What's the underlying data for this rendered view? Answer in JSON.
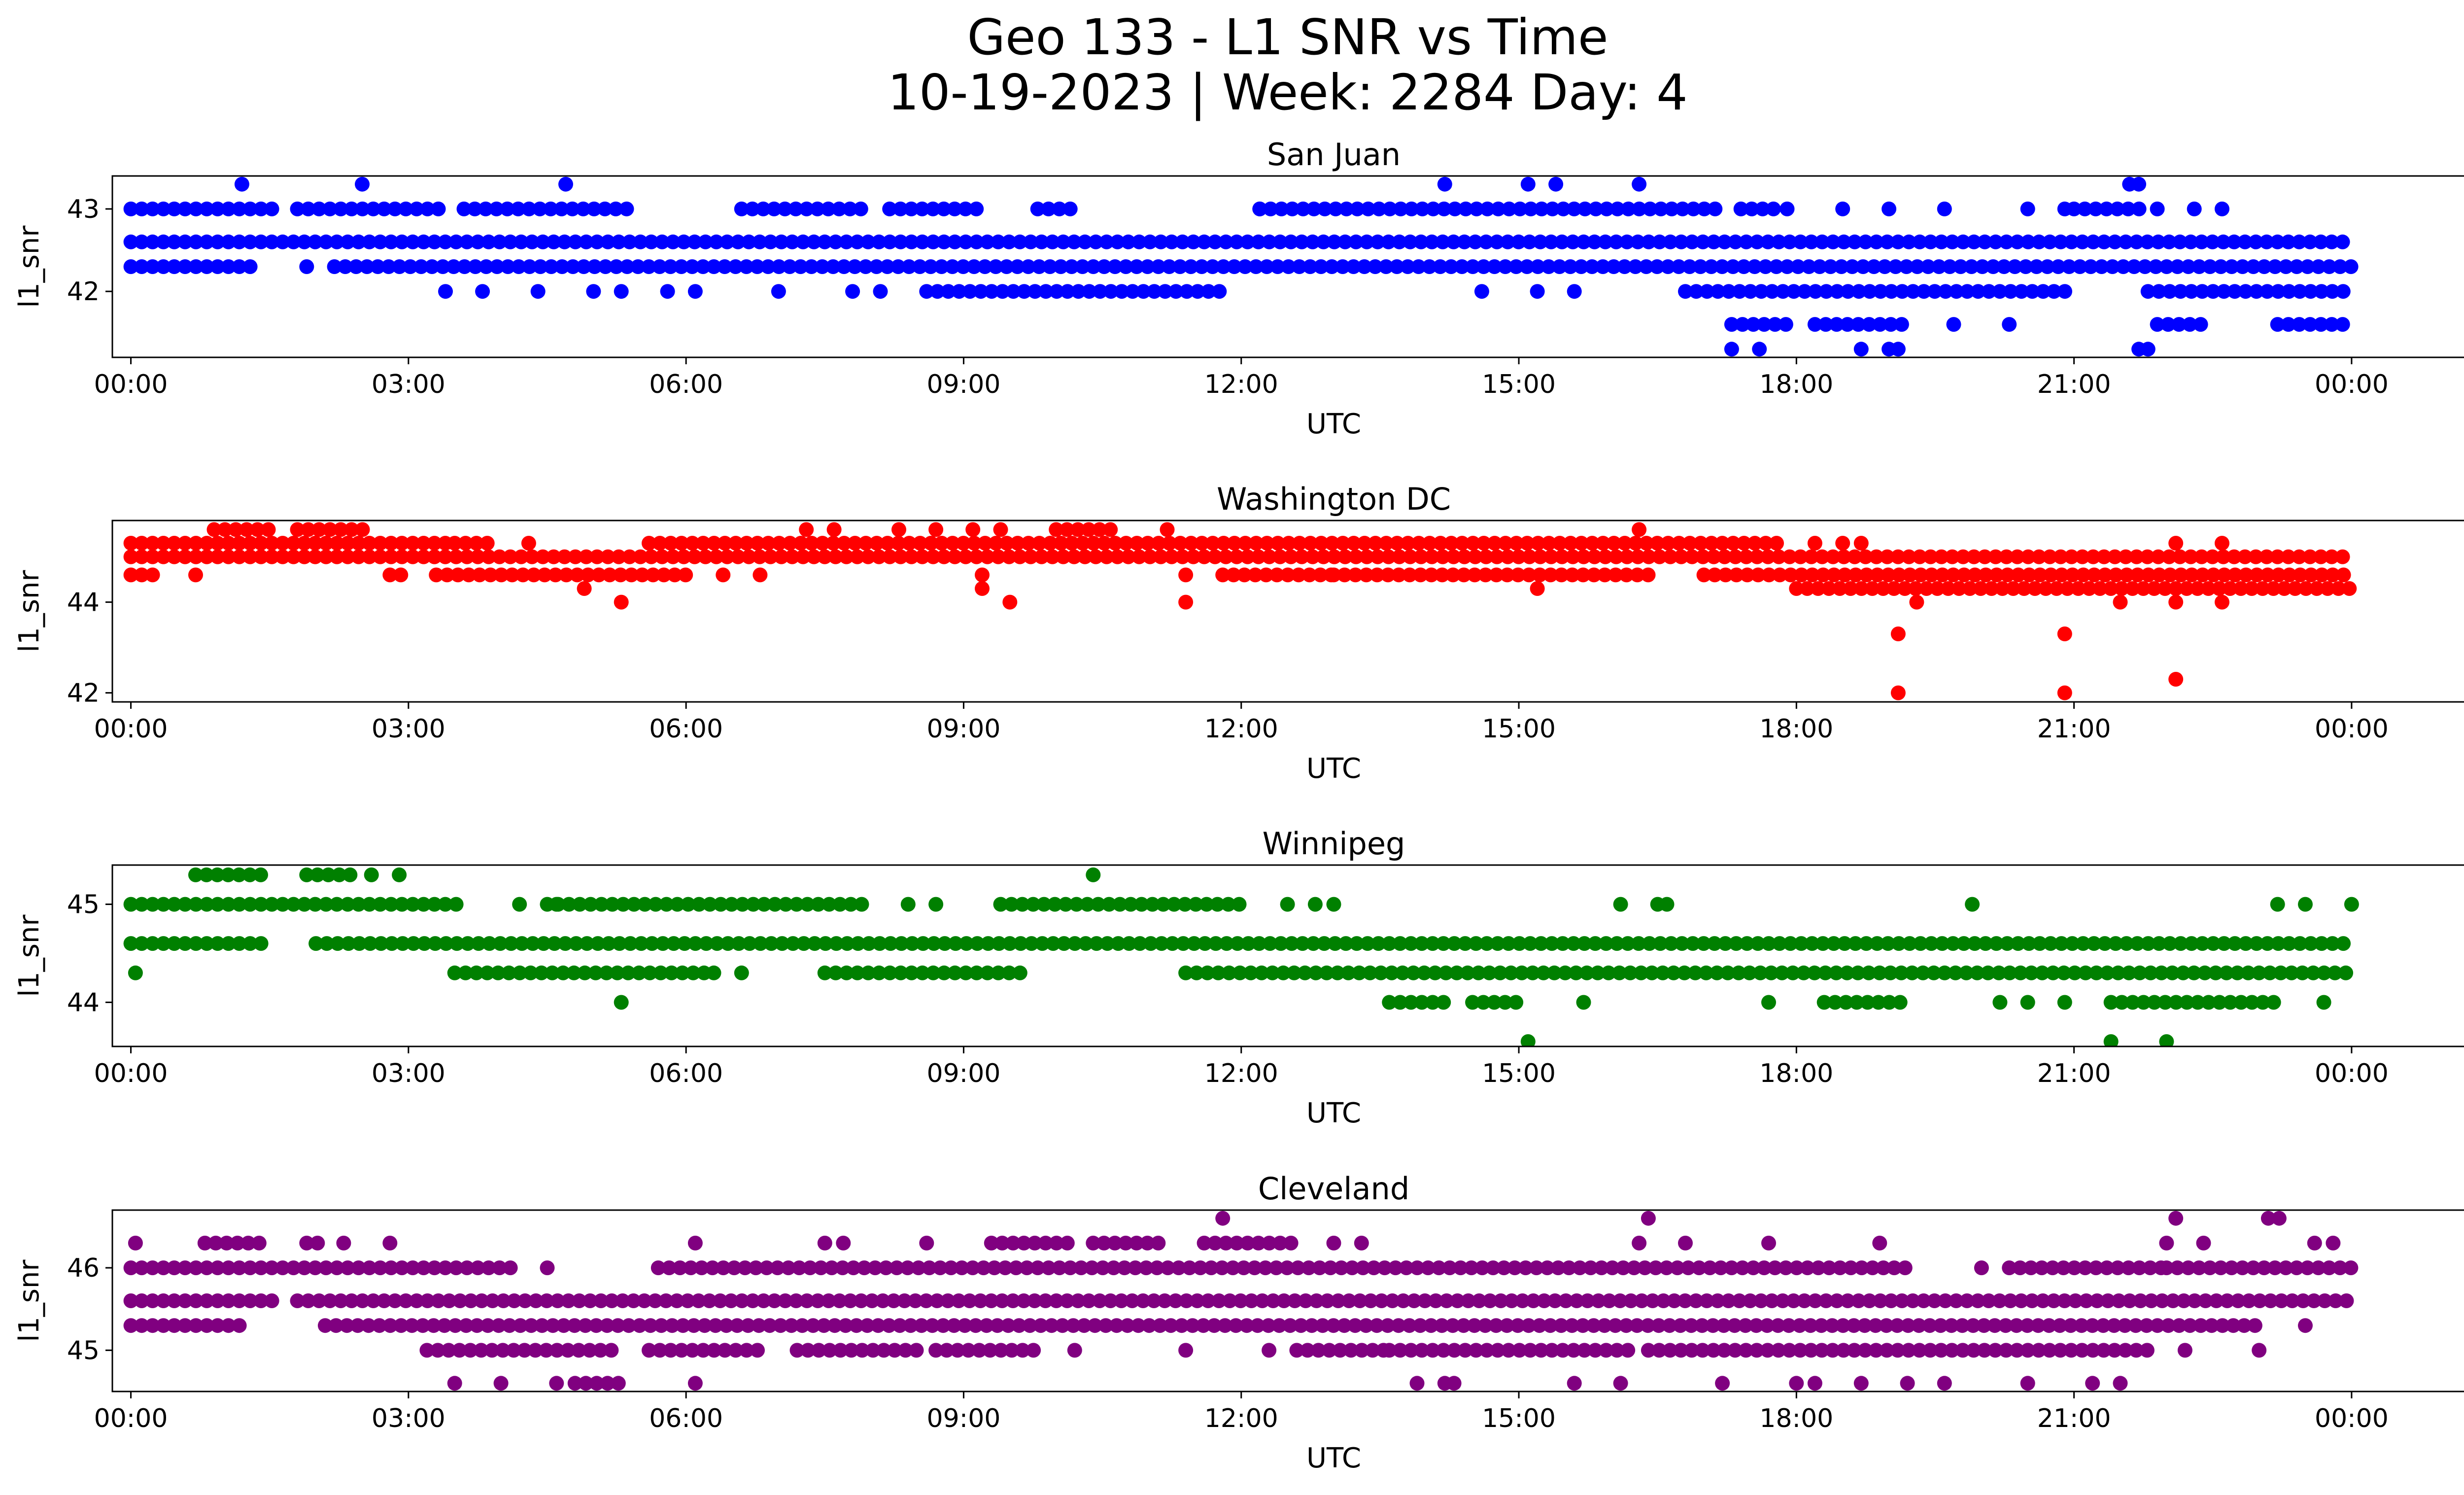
{
  "title_line1": "Geo 133 - L1 SNR vs Time",
  "title_line2": "10-19-2023 | Week: 2284 Day: 4",
  "chart_data": [
    {
      "type": "scatter",
      "title": "San Juan",
      "color": "#0000ff",
      "xlabel": "UTC",
      "ylabel": "l1_snr",
      "xlim": [
        -0.2,
        26.2
      ],
      "ylim": [
        41.2,
        43.4
      ],
      "xticks": [
        0,
        3,
        6,
        9,
        12,
        15,
        18,
        21,
        24
      ],
      "xtick_labels": [
        "00:00",
        "03:00",
        "06:00",
        "09:00",
        "12:00",
        "15:00",
        "18:00",
        "21:00",
        "00:00"
      ],
      "yticks": [
        42,
        43
      ],
      "ytick_labels": [
        "42",
        "43"
      ],
      "bands": [
        {
          "y": 43.0,
          "segments": [
            [
              0.0,
              1.6
            ],
            [
              1.8,
              3.4
            ],
            [
              3.6,
              5.4
            ],
            [
              6.6,
              8.0
            ],
            [
              8.2,
              9.2
            ],
            [
              9.8,
              10.2
            ],
            [
              12.2,
              17.2
            ],
            [
              17.4,
              17.8
            ],
            [
              21.0,
              21.8
            ]
          ]
        },
        {
          "y": 42.6,
          "segments": [
            [
              0.0,
              24.0
            ]
          ]
        },
        {
          "y": 42.3,
          "segments": [
            [
              0.0,
              1.4
            ],
            [
              2.2,
              24.0
            ]
          ]
        },
        {
          "y": 42.0,
          "segments": [
            [
              8.6,
              11.8
            ],
            [
              16.8,
              21.0
            ],
            [
              21.8,
              24.0
            ]
          ]
        },
        {
          "y": 41.6,
          "segments": [
            [
              17.3,
              18.0
            ],
            [
              18.2,
              19.2
            ],
            [
              21.9,
              22.4
            ],
            [
              23.2,
              24.0
            ]
          ]
        }
      ],
      "points": [
        [
          1.2,
          43.3
        ],
        [
          2.5,
          43.3
        ],
        [
          4.7,
          43.3
        ],
        [
          14.2,
          43.3
        ],
        [
          15.1,
          43.3
        ],
        [
          15.4,
          43.3
        ],
        [
          16.3,
          43.3
        ],
        [
          21.6,
          43.3
        ],
        [
          21.7,
          43.3
        ],
        [
          3.4,
          42.0
        ],
        [
          3.8,
          42.0
        ],
        [
          4.4,
          42.0
        ],
        [
          5.0,
          42.0
        ],
        [
          5.3,
          42.0
        ],
        [
          5.8,
          42.0
        ],
        [
          6.1,
          42.0
        ],
        [
          7.0,
          42.0
        ],
        [
          7.8,
          42.0
        ],
        [
          8.1,
          42.0
        ],
        [
          14.6,
          42.0
        ],
        [
          15.2,
          42.0
        ],
        [
          15.6,
          42.0
        ],
        [
          12.2,
          43.0
        ],
        [
          17.9,
          43.0
        ],
        [
          18.5,
          43.0
        ],
        [
          19.0,
          43.0
        ],
        [
          19.6,
          43.0
        ],
        [
          20.5,
          43.0
        ],
        [
          20.9,
          43.0
        ],
        [
          21.9,
          43.0
        ],
        [
          22.3,
          43.0
        ],
        [
          22.6,
          43.0
        ],
        [
          1.9,
          42.3
        ],
        [
          17.3,
          41.3
        ],
        [
          17.6,
          41.3
        ],
        [
          18.7,
          41.3
        ],
        [
          19.0,
          41.3
        ],
        [
          19.1,
          41.3
        ],
        [
          21.7,
          41.3
        ],
        [
          21.8,
          41.3
        ],
        [
          20.3,
          41.6
        ],
        [
          19.7,
          41.6
        ]
      ]
    },
    {
      "type": "scatter",
      "title": "Washington DC",
      "color": "#ff0000",
      "xlabel": "UTC",
      "ylabel": "l1_snr",
      "xlim": [
        -0.2,
        26.2
      ],
      "ylim": [
        41.8,
        45.8
      ],
      "xticks": [
        0,
        3,
        6,
        9,
        12,
        15,
        18,
        21,
        24
      ],
      "xtick_labels": [
        "00:00",
        "03:00",
        "06:00",
        "09:00",
        "12:00",
        "15:00",
        "18:00",
        "21:00",
        "00:00"
      ],
      "yticks": [
        42,
        44
      ],
      "ytick_labels": [
        "42",
        "44"
      ],
      "bands": [
        {
          "y": 45.6,
          "segments": [
            [
              0.9,
              1.6
            ],
            [
              1.8,
              2.6
            ],
            [
              10.0,
              10.6
            ]
          ]
        },
        {
          "y": 45.3,
          "segments": [
            [
              0.0,
              3.4
            ],
            [
              3.5,
              3.9
            ],
            [
              5.6,
              17.9
            ]
          ]
        },
        {
          "y": 45.0,
          "segments": [
            [
              0.0,
              24.0
            ]
          ]
        },
        {
          "y": 44.6,
          "segments": [
            [
              0.0,
              0.3
            ],
            [
              2.8,
              3.0
            ],
            [
              3.3,
              6.0
            ],
            [
              11.8,
              13.0
            ],
            [
              13.0,
              16.4
            ],
            [
              17.0,
              24.0
            ]
          ]
        },
        {
          "y": 44.3,
          "segments": [
            [
              18.0,
              24.0
            ]
          ]
        }
      ],
      "points": [
        [
          0.7,
          44.6
        ],
        [
          4.9,
          44.3
        ],
        [
          5.3,
          44.0
        ],
        [
          6.4,
          44.6
        ],
        [
          6.8,
          44.6
        ],
        [
          9.2,
          44.6
        ],
        [
          9.2,
          44.3
        ],
        [
          9.5,
          44.0
        ],
        [
          11.4,
          44.0
        ],
        [
          11.4,
          44.6
        ],
        [
          15.2,
          44.3
        ],
        [
          16.3,
          45.6
        ],
        [
          18.2,
          45.3
        ],
        [
          18.5,
          45.3
        ],
        [
          18.7,
          45.3
        ],
        [
          19.1,
          43.3
        ],
        [
          19.1,
          42.0
        ],
        [
          19.3,
          44.0
        ],
        [
          20.9,
          43.3
        ],
        [
          20.9,
          42.0
        ],
        [
          21.5,
          44.0
        ],
        [
          22.1,
          42.3
        ],
        [
          22.1,
          44.0
        ],
        [
          22.1,
          45.3
        ],
        [
          22.6,
          44.0
        ],
        [
          22.6,
          45.3
        ],
        [
          7.3,
          45.6
        ],
        [
          7.6,
          45.6
        ],
        [
          8.3,
          45.6
        ],
        [
          8.7,
          45.6
        ],
        [
          9.1,
          45.6
        ],
        [
          9.4,
          45.6
        ],
        [
          11.2,
          45.6
        ],
        [
          4.3,
          45.3
        ]
      ]
    },
    {
      "type": "scatter",
      "title": "Winnipeg",
      "color": "#008000",
      "xlabel": "UTC",
      "ylabel": "l1_snr",
      "xlim": [
        -0.2,
        26.2
      ],
      "ylim": [
        43.55,
        45.4
      ],
      "xticks": [
        0,
        3,
        6,
        9,
        12,
        15,
        18,
        21,
        24
      ],
      "xtick_labels": [
        "00:00",
        "03:00",
        "06:00",
        "09:00",
        "12:00",
        "15:00",
        "18:00",
        "21:00",
        "00:00"
      ],
      "yticks": [
        44,
        45
      ],
      "ytick_labels": [
        "44",
        "45"
      ],
      "bands": [
        {
          "y": 45.3,
          "segments": [
            [
              0.7,
              1.5
            ],
            [
              1.9,
              2.4
            ]
          ]
        },
        {
          "y": 45.0,
          "segments": [
            [
              0.0,
              3.6
            ],
            [
              4.5,
              8.0
            ],
            [
              9.4,
              12.0
            ]
          ]
        },
        {
          "y": 44.6,
          "segments": [
            [
              0.0,
              1.5
            ],
            [
              2.0,
              24.0
            ]
          ]
        },
        {
          "y": 44.3,
          "segments": [
            [
              3.5,
              6.2
            ],
            [
              7.5,
              9.7
            ],
            [
              11.4,
              24.0
            ]
          ]
        },
        {
          "y": 44.0,
          "segments": [
            [
              13.6,
              14.2
            ],
            [
              14.5,
              15.0
            ],
            [
              18.3,
              19.2
            ],
            [
              21.4,
              23.2
            ]
          ]
        }
      ],
      "points": [
        [
          0.05,
          44.3
        ],
        [
          5.3,
          44.0
        ],
        [
          2.6,
          45.3
        ],
        [
          2.9,
          45.3
        ],
        [
          10.4,
          45.3
        ],
        [
          4.2,
          45.0
        ],
        [
          4.6,
          45.0
        ],
        [
          8.4,
          45.0
        ],
        [
          8.7,
          45.0
        ],
        [
          12.5,
          45.0
        ],
        [
          12.8,
          45.0
        ],
        [
          13.0,
          45.0
        ],
        [
          15.1,
          43.6
        ],
        [
          15.7,
          44.0
        ],
        [
          16.1,
          45.0
        ],
        [
          16.5,
          45.0
        ],
        [
          16.6,
          45.0
        ],
        [
          17.7,
          44.0
        ],
        [
          19.9,
          45.0
        ],
        [
          20.2,
          44.0
        ],
        [
          20.5,
          44.0
        ],
        [
          20.9,
          44.0
        ],
        [
          21.4,
          43.6
        ],
        [
          22.0,
          43.6
        ],
        [
          23.2,
          45.0
        ],
        [
          23.5,
          45.0
        ],
        [
          24.0,
          45.0
        ],
        [
          23.7,
          44.0
        ],
        [
          6.3,
          44.3
        ],
        [
          6.6,
          44.3
        ]
      ]
    },
    {
      "type": "scatter",
      "title": "Cleveland",
      "color": "#800080",
      "xlabel": "UTC",
      "ylabel": "l1_snr",
      "xlim": [
        -0.2,
        26.2
      ],
      "ylim": [
        44.5,
        46.7
      ],
      "xticks": [
        0,
        3,
        6,
        9,
        12,
        15,
        18,
        21,
        24
      ],
      "xtick_labels": [
        "00:00",
        "03:00",
        "06:00",
        "09:00",
        "12:00",
        "15:00",
        "18:00",
        "21:00",
        "00:00"
      ],
      "yticks": [
        45,
        46
      ],
      "ytick_labels": [
        "45",
        "46"
      ],
      "bands": [
        {
          "y": 46.6,
          "segments": [
            [
              23.1,
              23.3
            ]
          ]
        },
        {
          "y": 46.3,
          "segments": [
            [
              0.8,
              1.4
            ],
            [
              1.9,
              2.1
            ],
            [
              9.3,
              10.2
            ],
            [
              10.4,
              11.2
            ],
            [
              11.6,
              12.6
            ]
          ]
        },
        {
          "y": 46.0,
          "segments": [
            [
              0.0,
              4.2
            ],
            [
              5.7,
              19.2
            ],
            [
              20.3,
              22.0
            ],
            [
              22.0,
              24.0
            ]
          ]
        },
        {
          "y": 45.6,
          "segments": [
            [
              0.0,
              1.6
            ],
            [
              1.8,
              24.0
            ]
          ]
        },
        {
          "y": 45.3,
          "segments": [
            [
              0.0,
              1.2
            ],
            [
              2.1,
              23.0
            ]
          ]
        },
        {
          "y": 45.0,
          "segments": [
            [
              3.2,
              5.3
            ],
            [
              5.6,
              6.8
            ],
            [
              7.2,
              8.5
            ],
            [
              8.7,
              9.8
            ],
            [
              12.6,
              13.6
            ],
            [
              13.6,
              16.2
            ],
            [
              16.4,
              21.9
            ]
          ]
        },
        {
          "y": 44.6,
          "segments": [
            [
              4.8,
              5.3
            ]
          ]
        }
      ],
      "points": [
        [
          0.05,
          46.3
        ],
        [
          2.3,
          46.3
        ],
        [
          2.8,
          46.3
        ],
        [
          3.5,
          44.6
        ],
        [
          4.0,
          44.6
        ],
        [
          4.6,
          44.6
        ],
        [
          4.5,
          46.0
        ],
        [
          6.1,
          46.3
        ],
        [
          6.1,
          44.6
        ],
        [
          7.5,
          46.3
        ],
        [
          7.7,
          46.3
        ],
        [
          8.6,
          46.3
        ],
        [
          11.8,
          46.6
        ],
        [
          11.4,
          45.0
        ],
        [
          12.3,
          45.0
        ],
        [
          10.2,
          45.0
        ],
        [
          13.0,
          46.3
        ],
        [
          13.3,
          46.3
        ],
        [
          13.9,
          44.6
        ],
        [
          14.2,
          44.6
        ],
        [
          14.3,
          44.6
        ],
        [
          15.6,
          44.6
        ],
        [
          16.1,
          44.6
        ],
        [
          16.4,
          46.6
        ],
        [
          16.3,
          46.3
        ],
        [
          16.8,
          46.3
        ],
        [
          17.2,
          44.6
        ],
        [
          17.7,
          46.3
        ],
        [
          18.0,
          44.6
        ],
        [
          18.2,
          44.6
        ],
        [
          18.7,
          44.6
        ],
        [
          18.9,
          46.3
        ],
        [
          19.2,
          44.6
        ],
        [
          19.6,
          44.6
        ],
        [
          20.0,
          46.0
        ],
        [
          20.5,
          44.6
        ],
        [
          21.2,
          44.6
        ],
        [
          21.5,
          44.6
        ],
        [
          22.0,
          46.3
        ],
        [
          22.1,
          46.6
        ],
        [
          22.4,
          46.3
        ],
        [
          22.2,
          45.0
        ],
        [
          23.0,
          45.0
        ],
        [
          23.5,
          45.3
        ],
        [
          23.6,
          46.3
        ],
        [
          23.8,
          46.3
        ]
      ]
    }
  ]
}
